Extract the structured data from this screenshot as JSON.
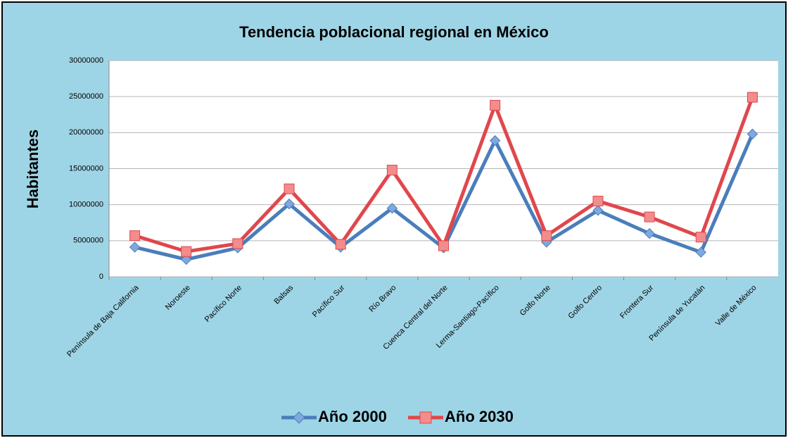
{
  "chart_data": {
    "type": "line",
    "title": "Tendencia poblacional regional en México",
    "y_label": "Habitantes",
    "categories": [
      "Península de Baja California",
      "Noroeste",
      "Pacífico Norte",
      "Balsas",
      "Pacífico Sur",
      "Río Bravo",
      "Cuenca Central del Norte",
      "Lerma-Santiago-Pacífico",
      "Golfo Norte",
      "Golfo Centro",
      "Frontera Sur",
      "Península de Yucatán",
      "Valle de México"
    ],
    "series": [
      {
        "name": "Año 2000",
        "color": "#4a7ebb",
        "values": [
          4100000,
          2400000,
          4000000,
          10100000,
          4100000,
          9500000,
          4000000,
          18900000,
          4800000,
          9200000,
          6000000,
          3400000,
          19800000
        ]
      },
      {
        "name": "Año 2030",
        "color": "#e0474c",
        "values": [
          5700000,
          3500000,
          4600000,
          12200000,
          4500000,
          14800000,
          4300000,
          23800000,
          5700000,
          10500000,
          8300000,
          5500000,
          24900000
        ]
      }
    ],
    "ylim": [
      0,
      30000000
    ],
    "yticks": [
      0,
      5000000,
      10000000,
      15000000,
      20000000,
      25000000,
      30000000
    ],
    "grid": true,
    "legend": "bottom"
  }
}
